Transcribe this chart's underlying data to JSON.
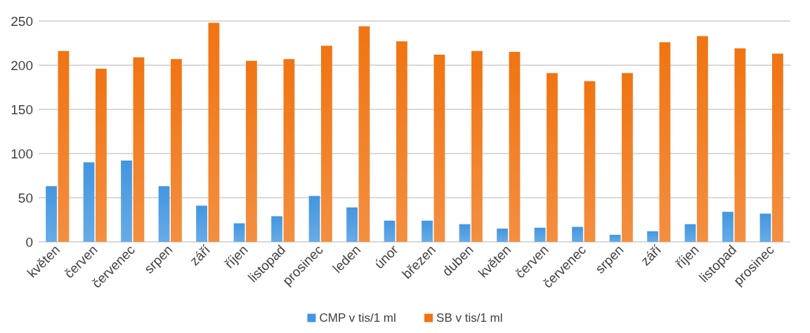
{
  "chart_data": {
    "type": "bar",
    "categories": [
      "květen",
      "červen",
      "červenec",
      "srpen",
      "září",
      "říjen",
      "listopad",
      "prosinec",
      "leden",
      "únor",
      "březen",
      "duben",
      "květen",
      "červen",
      "červenec",
      "srpen",
      "září",
      "říjen",
      "listopad",
      "prosinec"
    ],
    "series": [
      {
        "name": "CMP v tis/1 ml",
        "color": "#4396e0",
        "values": [
          63,
          90,
          92,
          63,
          41,
          21,
          29,
          52,
          39,
          24,
          24,
          20,
          15,
          16,
          17,
          8,
          12,
          20,
          34,
          32
        ]
      },
      {
        "name": "SB v tis/1 ml",
        "color": "#f07412",
        "values": [
          216,
          196,
          209,
          207,
          248,
          205,
          207,
          222,
          244,
          227,
          212,
          216,
          215,
          191,
          182,
          191,
          226,
          233,
          219,
          213
        ]
      }
    ],
    "ylim": [
      0,
      250
    ],
    "yticks": [
      0,
      50,
      100,
      150,
      200,
      250
    ],
    "grid": "y",
    "legend": "bottom"
  }
}
